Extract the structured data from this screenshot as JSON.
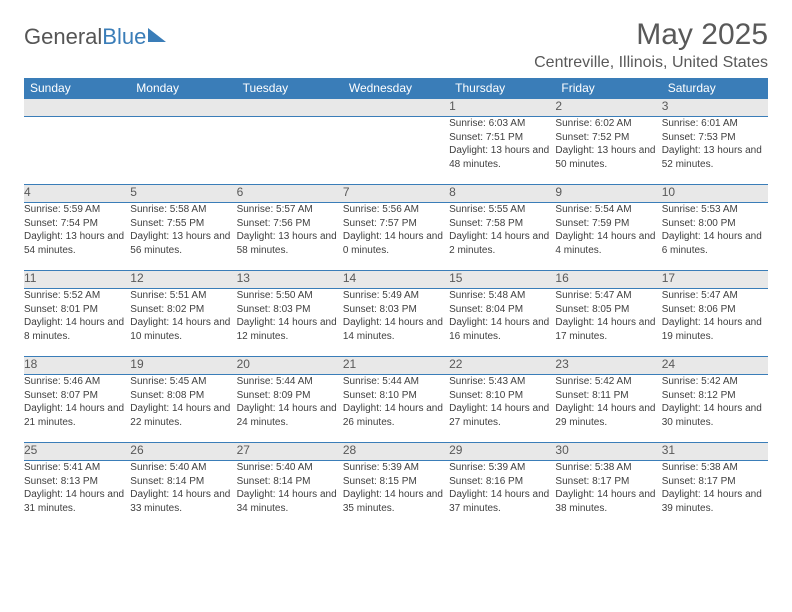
{
  "logo": {
    "word1": "General",
    "word2": "Blue"
  },
  "title": "May 2025",
  "location": "Centreville, Illinois, United States",
  "header_bg": "#3a7db8",
  "header_fg": "#ffffff",
  "daynum_bg": "#e8e8e8",
  "border_color": "#3a7db8",
  "text_color": "#404040",
  "title_color": "#595959",
  "font_family": "Arial",
  "day_headers": [
    "Sunday",
    "Monday",
    "Tuesday",
    "Wednesday",
    "Thursday",
    "Friday",
    "Saturday"
  ],
  "weeks": [
    [
      null,
      null,
      null,
      null,
      {
        "n": "1",
        "sr": "6:03 AM",
        "ss": "7:51 PM",
        "dl": "13 hours and 48 minutes."
      },
      {
        "n": "2",
        "sr": "6:02 AM",
        "ss": "7:52 PM",
        "dl": "13 hours and 50 minutes."
      },
      {
        "n": "3",
        "sr": "6:01 AM",
        "ss": "7:53 PM",
        "dl": "13 hours and 52 minutes."
      }
    ],
    [
      {
        "n": "4",
        "sr": "5:59 AM",
        "ss": "7:54 PM",
        "dl": "13 hours and 54 minutes."
      },
      {
        "n": "5",
        "sr": "5:58 AM",
        "ss": "7:55 PM",
        "dl": "13 hours and 56 minutes."
      },
      {
        "n": "6",
        "sr": "5:57 AM",
        "ss": "7:56 PM",
        "dl": "13 hours and 58 minutes."
      },
      {
        "n": "7",
        "sr": "5:56 AM",
        "ss": "7:57 PM",
        "dl": "14 hours and 0 minutes."
      },
      {
        "n": "8",
        "sr": "5:55 AM",
        "ss": "7:58 PM",
        "dl": "14 hours and 2 minutes."
      },
      {
        "n": "9",
        "sr": "5:54 AM",
        "ss": "7:59 PM",
        "dl": "14 hours and 4 minutes."
      },
      {
        "n": "10",
        "sr": "5:53 AM",
        "ss": "8:00 PM",
        "dl": "14 hours and 6 minutes."
      }
    ],
    [
      {
        "n": "11",
        "sr": "5:52 AM",
        "ss": "8:01 PM",
        "dl": "14 hours and 8 minutes."
      },
      {
        "n": "12",
        "sr": "5:51 AM",
        "ss": "8:02 PM",
        "dl": "14 hours and 10 minutes."
      },
      {
        "n": "13",
        "sr": "5:50 AM",
        "ss": "8:03 PM",
        "dl": "14 hours and 12 minutes."
      },
      {
        "n": "14",
        "sr": "5:49 AM",
        "ss": "8:03 PM",
        "dl": "14 hours and 14 minutes."
      },
      {
        "n": "15",
        "sr": "5:48 AM",
        "ss": "8:04 PM",
        "dl": "14 hours and 16 minutes."
      },
      {
        "n": "16",
        "sr": "5:47 AM",
        "ss": "8:05 PM",
        "dl": "14 hours and 17 minutes."
      },
      {
        "n": "17",
        "sr": "5:47 AM",
        "ss": "8:06 PM",
        "dl": "14 hours and 19 minutes."
      }
    ],
    [
      {
        "n": "18",
        "sr": "5:46 AM",
        "ss": "8:07 PM",
        "dl": "14 hours and 21 minutes."
      },
      {
        "n": "19",
        "sr": "5:45 AM",
        "ss": "8:08 PM",
        "dl": "14 hours and 22 minutes."
      },
      {
        "n": "20",
        "sr": "5:44 AM",
        "ss": "8:09 PM",
        "dl": "14 hours and 24 minutes."
      },
      {
        "n": "21",
        "sr": "5:44 AM",
        "ss": "8:10 PM",
        "dl": "14 hours and 26 minutes."
      },
      {
        "n": "22",
        "sr": "5:43 AM",
        "ss": "8:10 PM",
        "dl": "14 hours and 27 minutes."
      },
      {
        "n": "23",
        "sr": "5:42 AM",
        "ss": "8:11 PM",
        "dl": "14 hours and 29 minutes."
      },
      {
        "n": "24",
        "sr": "5:42 AM",
        "ss": "8:12 PM",
        "dl": "14 hours and 30 minutes."
      }
    ],
    [
      {
        "n": "25",
        "sr": "5:41 AM",
        "ss": "8:13 PM",
        "dl": "14 hours and 31 minutes."
      },
      {
        "n": "26",
        "sr": "5:40 AM",
        "ss": "8:14 PM",
        "dl": "14 hours and 33 minutes."
      },
      {
        "n": "27",
        "sr": "5:40 AM",
        "ss": "8:14 PM",
        "dl": "14 hours and 34 minutes."
      },
      {
        "n": "28",
        "sr": "5:39 AM",
        "ss": "8:15 PM",
        "dl": "14 hours and 35 minutes."
      },
      {
        "n": "29",
        "sr": "5:39 AM",
        "ss": "8:16 PM",
        "dl": "14 hours and 37 minutes."
      },
      {
        "n": "30",
        "sr": "5:38 AM",
        "ss": "8:17 PM",
        "dl": "14 hours and 38 minutes."
      },
      {
        "n": "31",
        "sr": "5:38 AM",
        "ss": "8:17 PM",
        "dl": "14 hours and 39 minutes."
      }
    ]
  ],
  "labels": {
    "sunrise": "Sunrise:",
    "sunset": "Sunset:",
    "daylight": "Daylight:"
  }
}
